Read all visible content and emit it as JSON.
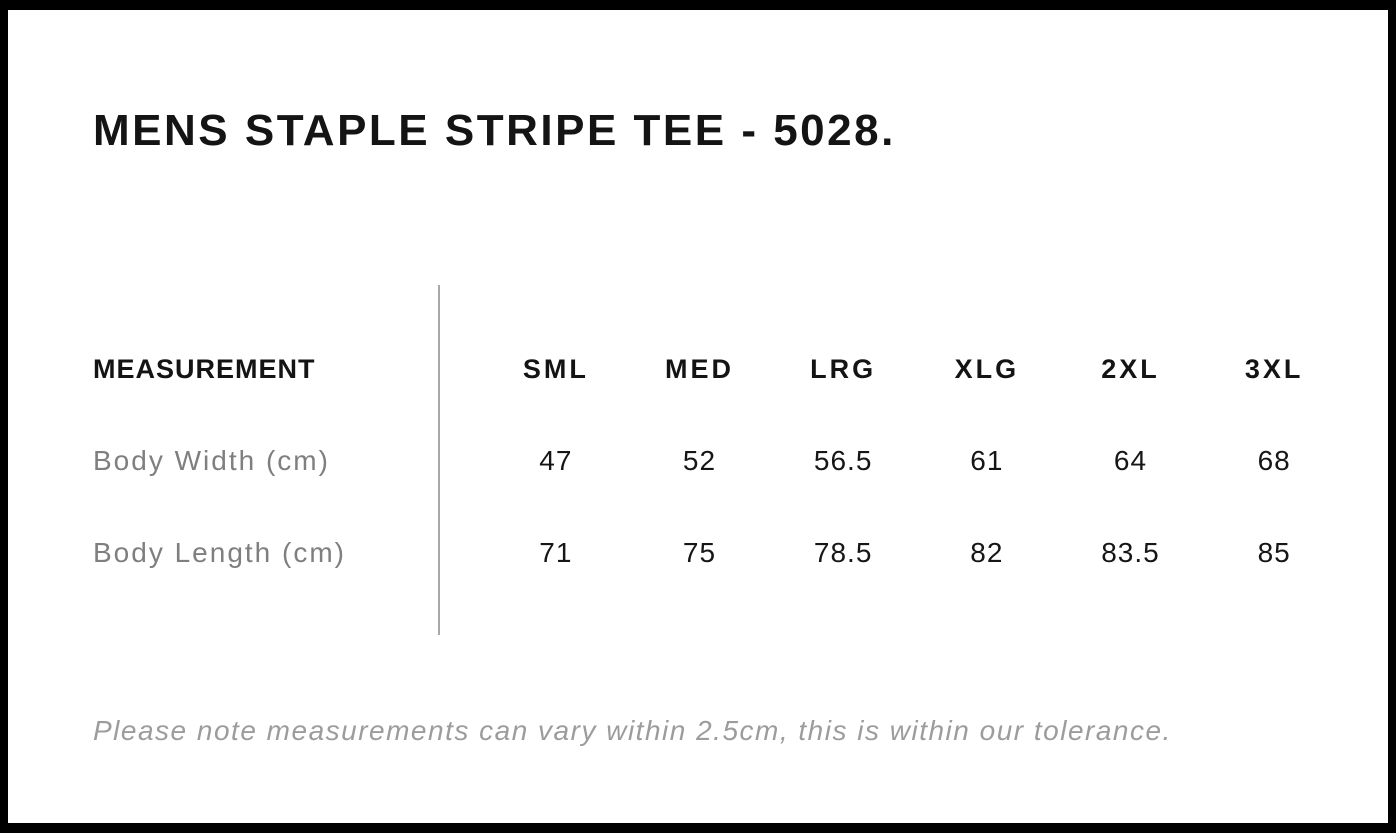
{
  "page": {
    "title": "MENS STAPLE STRIPE TEE - 5028.",
    "note": "Please note measurements can vary within 2.5cm, this is within our tolerance."
  },
  "size_chart": {
    "measurement_header": "MEASUREMENT",
    "sizes": [
      "SML",
      "MED",
      "LRG",
      "XLG",
      "2XL",
      "3XL"
    ],
    "rows": [
      {
        "label": "Body Width (cm)",
        "values": [
          "47",
          "52",
          "56.5",
          "61",
          "64",
          "68"
        ]
      },
      {
        "label": "Body Length (cm)",
        "values": [
          "71",
          "75",
          "78.5",
          "82",
          "83.5",
          "85"
        ]
      }
    ]
  },
  "chart_data": {
    "type": "table",
    "title": "MENS STAPLE STRIPE TEE - 5028.",
    "columns": [
      "MEASUREMENT",
      "SML",
      "MED",
      "LRG",
      "XLG",
      "2XL",
      "3XL"
    ],
    "rows": [
      [
        "Body Width (cm)",
        47,
        52,
        56.5,
        61,
        64,
        68
      ],
      [
        "Body Length (cm)",
        71,
        75,
        78.5,
        82,
        83.5,
        85
      ]
    ],
    "footnote": "Please note measurements can vary within 2.5cm, this is within our tolerance."
  },
  "colors": {
    "frame": "#000000",
    "background": "#ffffff",
    "heading_text": "#141414",
    "label_gray": "#7f7f7f",
    "note_gray": "#9c9c9c",
    "divider_gray": "#a8a8a8"
  }
}
